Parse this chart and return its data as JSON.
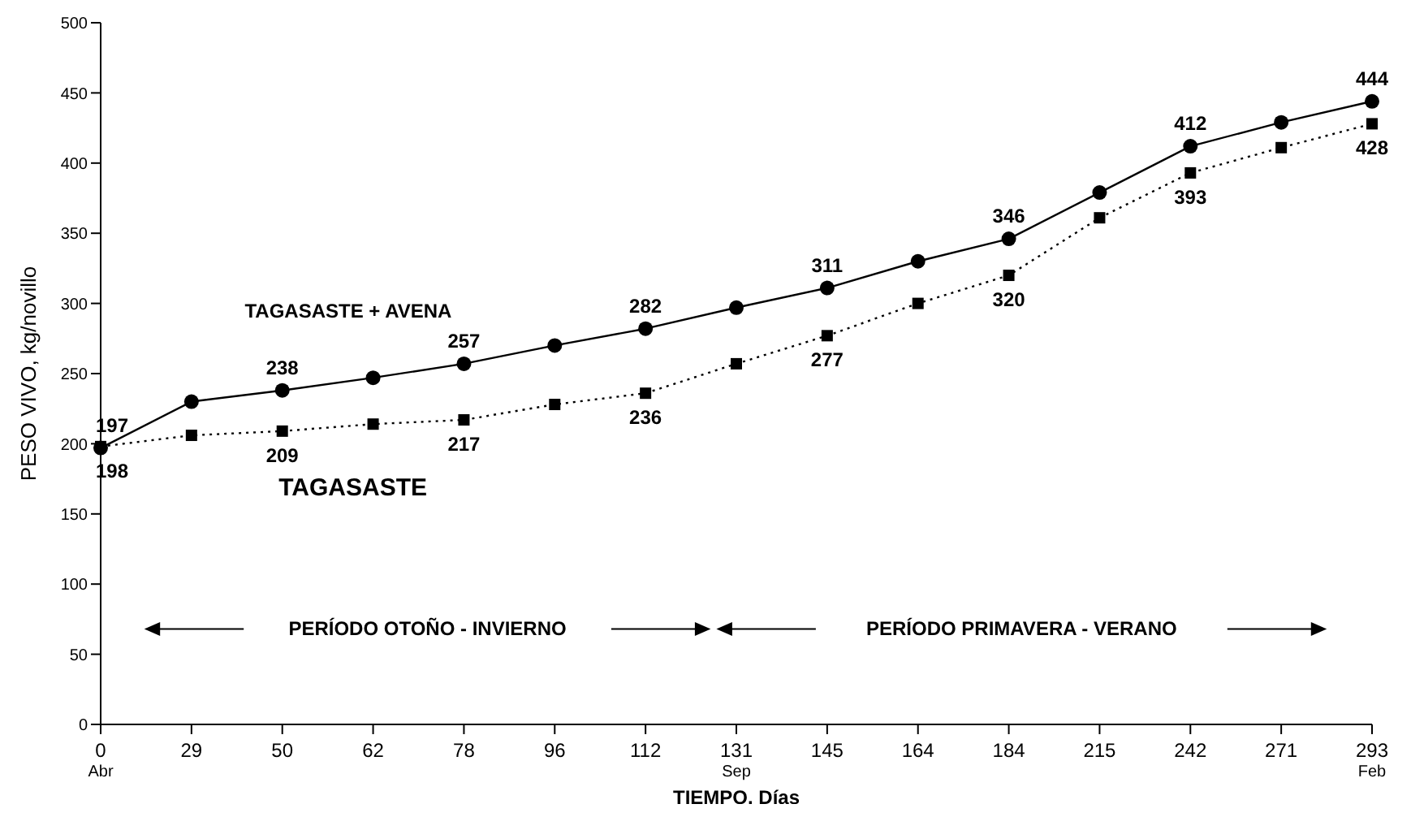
{
  "chart_data": {
    "type": "line",
    "xlabel": "TIEMPO. Días",
    "ylabel": "PESO VIVO, kg/novillo",
    "categories": [
      "0",
      "29",
      "50",
      "62",
      "78",
      "96",
      "112",
      "131",
      "145",
      "164",
      "184",
      "215",
      "242",
      "271",
      "293"
    ],
    "series": [
      {
        "name": "TAGASASTE + AVENA",
        "color": "#000000",
        "marker": "circle",
        "line_style": "solid",
        "values": [
          197,
          230,
          238,
          247,
          257,
          270,
          282,
          297,
          311,
          330,
          346,
          379,
          412,
          429,
          444
        ],
        "value_labels": [
          "197",
          null,
          "238",
          null,
          "257",
          null,
          "282",
          null,
          "311",
          null,
          "346",
          null,
          "412",
          null,
          "444"
        ]
      },
      {
        "name": "TAGASASTE",
        "color": "#000000",
        "marker": "square",
        "line_style": "dotted",
        "values": [
          198,
          206,
          209,
          214,
          217,
          228,
          236,
          257,
          277,
          300,
          320,
          361,
          393,
          411,
          428
        ],
        "value_labels": [
          "198",
          null,
          "209",
          null,
          "217",
          null,
          "236",
          null,
          "277",
          null,
          "320",
          null,
          "393",
          null,
          "428"
        ]
      }
    ],
    "ylim": [
      0,
      500
    ],
    "yticks": [
      0,
      50,
      100,
      150,
      200,
      250,
      300,
      350,
      400,
      450,
      500
    ],
    "grid": false,
    "legend": false,
    "annotations": [
      "Abr",
      "Sep",
      "Feb",
      "PERÍODO OTOÑO - INVIERNO",
      "PERÍODO PRIMAVERA - VERANO"
    ]
  }
}
